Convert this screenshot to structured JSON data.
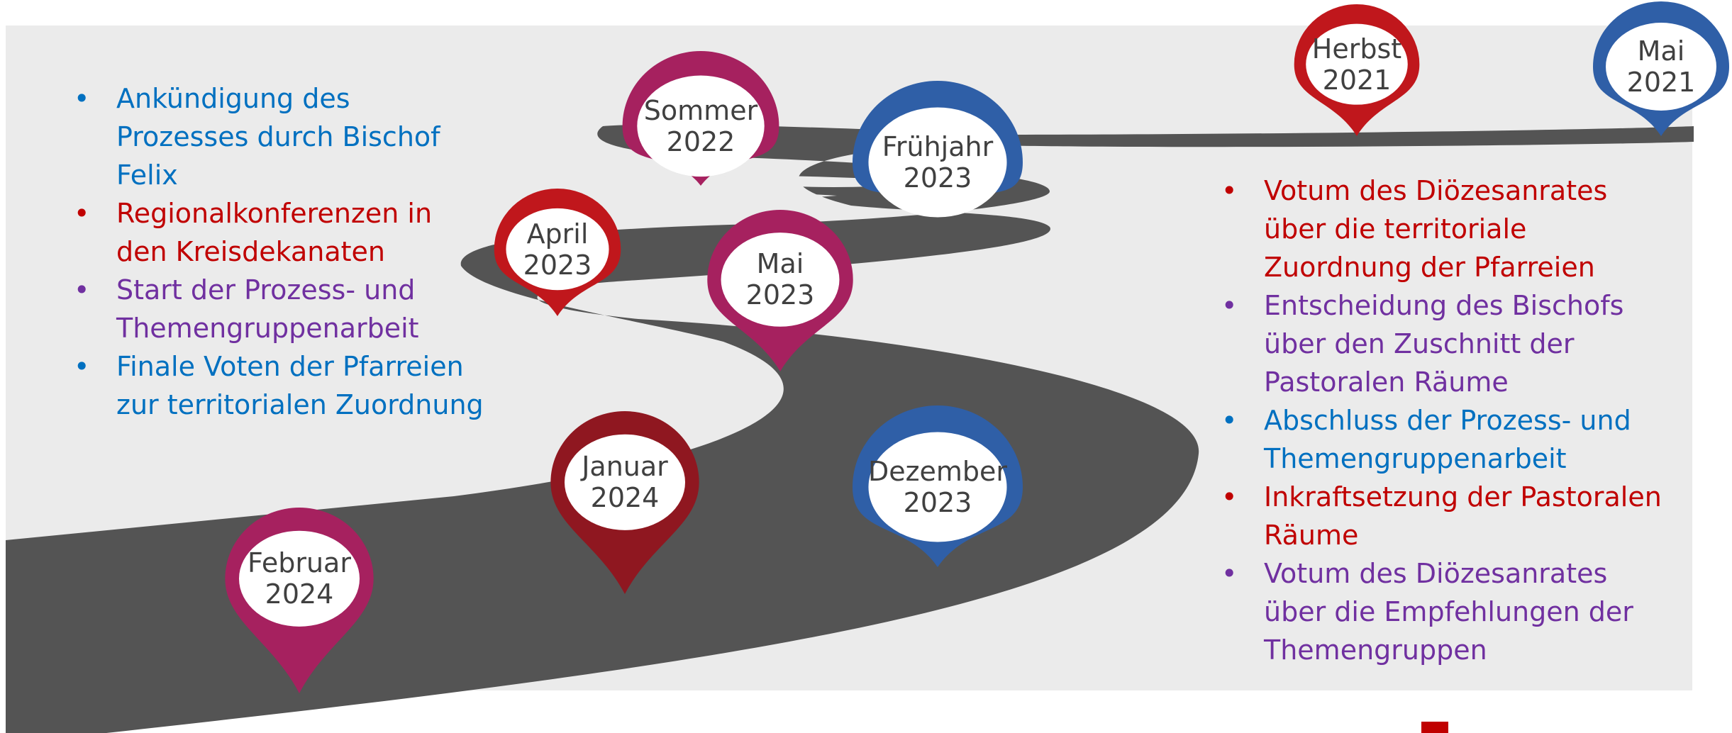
{
  "colors": {
    "blue": "#0070c0",
    "red": "#c00000",
    "purple": "#7030a0",
    "road": "#545454",
    "panel": "#ebebeb",
    "pin_magenta": "#a6215f",
    "pin_blue": "#2f5fa7",
    "pin_red": "#c0171c",
    "pin_darkred": "#8f1720"
  },
  "milestones": [
    {
      "id": "mai-2021",
      "line1": "Mai",
      "line2": "2021",
      "color": "#2f5fa7"
    },
    {
      "id": "herbst-2021",
      "line1": "Herbst",
      "line2": "2021",
      "color": "#c0171c"
    },
    {
      "id": "sommer-2022",
      "line1": "Sommer",
      "line2": "2022",
      "color": "#a6215f"
    },
    {
      "id": "fruehjahr-2023",
      "line1": "Frühjahr",
      "line2": "2023",
      "color": "#2f5fa7"
    },
    {
      "id": "april-2023",
      "line1": "April",
      "line2": "2023",
      "color": "#c0171c"
    },
    {
      "id": "mai-2023",
      "line1": "Mai",
      "line2": "2023",
      "color": "#a6215f"
    },
    {
      "id": "dezember-2023",
      "line1": "Dezember",
      "line2": "2023",
      "color": "#2f5fa7"
    },
    {
      "id": "januar-2024",
      "line1": "Januar",
      "line2": "2024",
      "color": "#8f1720"
    },
    {
      "id": "februar-2024",
      "line1": "Februar",
      "line2": "2024",
      "color": "#a6215f"
    }
  ],
  "left_list": [
    {
      "text": "Ankündigung des Prozesses durch Bischof Felix",
      "color": "#0070c0"
    },
    {
      "text": "Regionalkonferenzen in den Kreisdekanaten",
      "color": "#c00000"
    },
    {
      "text": "Start der Prozess- und Themengruppenarbeit",
      "color": "#7030a0"
    },
    {
      "text": "Finale Voten der Pfarreien zur territorialen Zuordnung",
      "color": "#0070c0"
    }
  ],
  "right_list": [
    {
      "text": "Votum des Diözesanrates über die territoriale Zuordnung der Pfarreien",
      "color": "#c00000"
    },
    {
      "text": "Entscheidung des Bischofs über den Zuschnitt der Pastoralen Räume",
      "color": "#7030a0"
    },
    {
      "text": "Abschluss der Prozess- und Themengruppenarbeit",
      "color": "#0070c0"
    },
    {
      "text": "Inkraftsetzung der Pastoralen Räume",
      "color": "#c00000"
    },
    {
      "text": "Votum des Diözesanrates über die Empfehlungen der Themengruppen",
      "color": "#7030a0"
    }
  ]
}
